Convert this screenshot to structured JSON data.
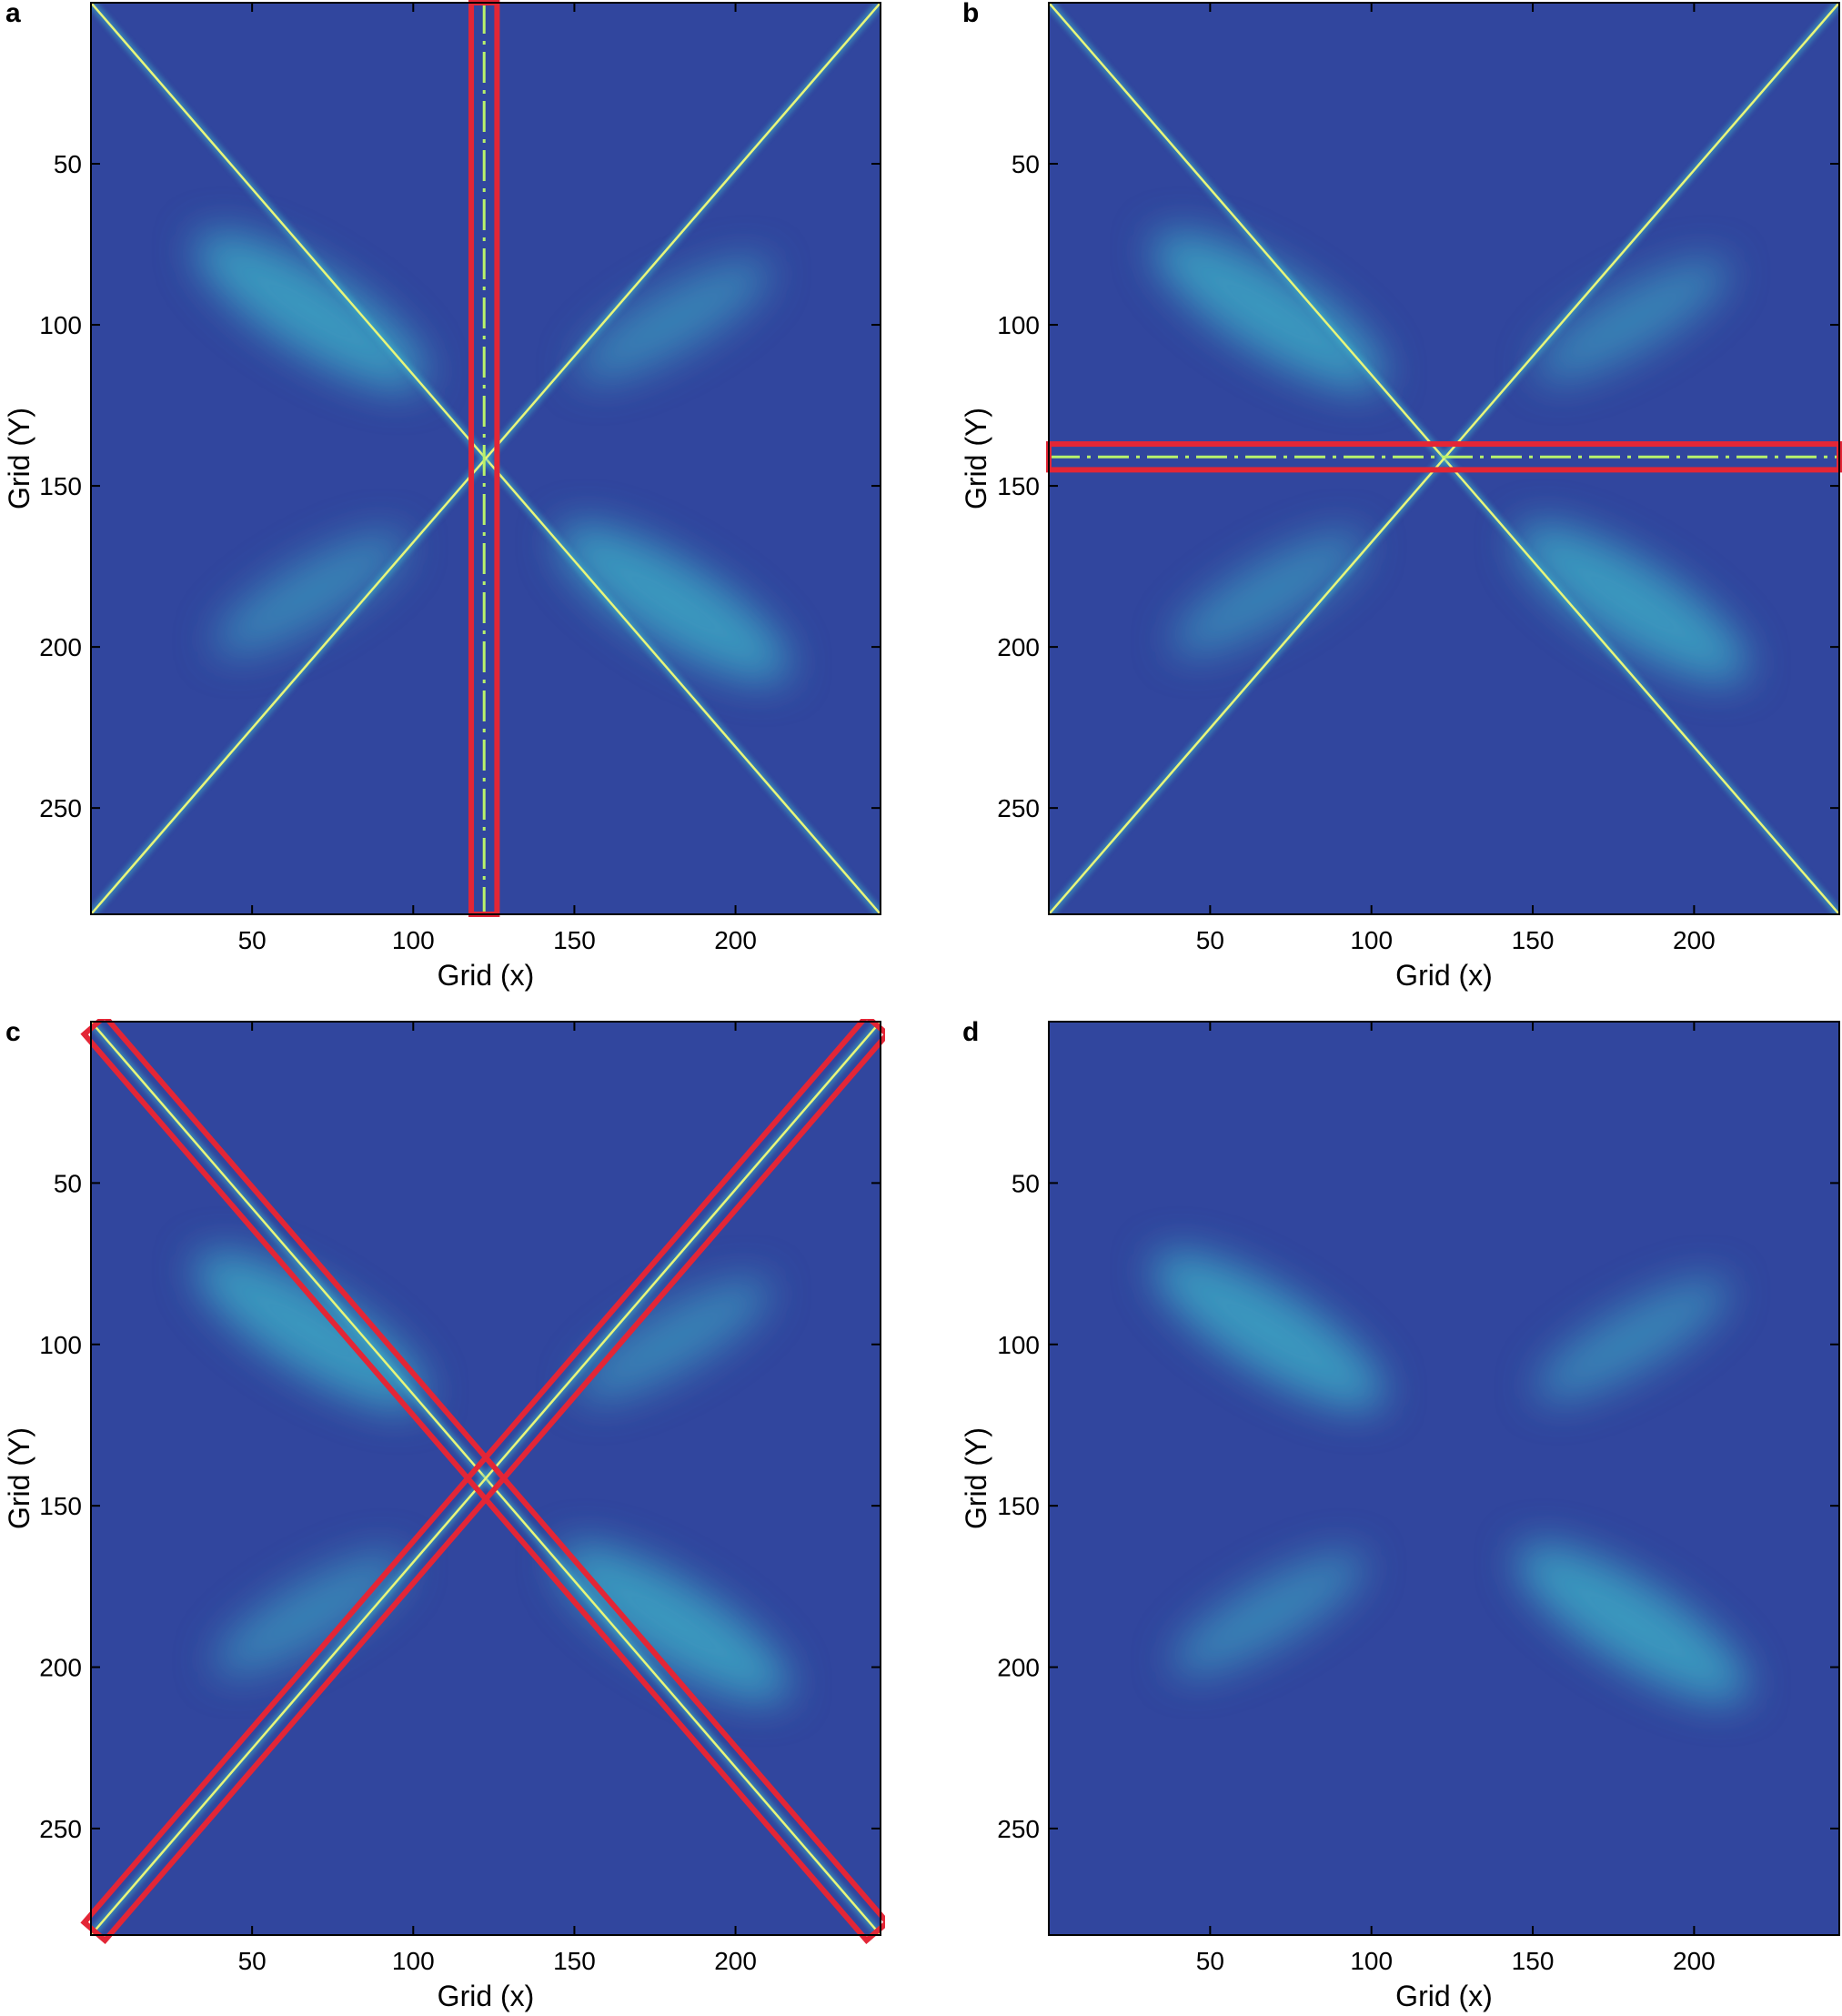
{
  "colors": {
    "background": "#31469e",
    "trace": "#b8f26b",
    "trace_core": "#e8f57a",
    "diffuse": "#3fb3c9",
    "highlight_box": "#e32636",
    "frame": "#000000"
  },
  "chart_data": [
    {
      "panel": "a",
      "type": "heatmap",
      "xlabel": "Grid (x)",
      "ylabel": "Grid (Y)",
      "xlim": [
        0,
        245
      ],
      "ylim": [
        283,
        0
      ],
      "x_ticks": [
        50,
        100,
        150,
        200
      ],
      "y_ticks": [
        50,
        100,
        150,
        200,
        250
      ],
      "center": [
        122,
        141
      ],
      "diagonal_traces": true,
      "diffuse_lobes": true,
      "highlight": {
        "shape": "vertical-band",
        "x": [
          118,
          126
        ],
        "y": [
          0,
          283
        ]
      },
      "dashed_line": {
        "orientation": "vertical",
        "x": 122
      }
    },
    {
      "panel": "b",
      "type": "heatmap",
      "xlabel": "Grid (x)",
      "ylabel": "Grid (Y)",
      "xlim": [
        0,
        245
      ],
      "ylim": [
        283,
        0
      ],
      "x_ticks": [
        50,
        100,
        150,
        200
      ],
      "y_ticks": [
        50,
        100,
        150,
        200,
        250
      ],
      "center": [
        122,
        141
      ],
      "diagonal_traces": true,
      "diffuse_lobes": true,
      "highlight": {
        "shape": "horizontal-band",
        "x": [
          0,
          245
        ],
        "y": [
          137,
          145
        ]
      },
      "dashed_line": {
        "orientation": "horizontal",
        "y": 141
      }
    },
    {
      "panel": "c",
      "type": "heatmap",
      "xlabel": "Grid (x)",
      "ylabel": "Grid (Y)",
      "xlim": [
        0,
        245
      ],
      "ylim": [
        283,
        0
      ],
      "x_ticks": [
        50,
        100,
        150,
        200
      ],
      "y_ticks": [
        50,
        100,
        150,
        200,
        250
      ],
      "center": [
        122,
        141
      ],
      "diagonal_traces": true,
      "diffuse_lobes": true,
      "highlight": {
        "shape": "diagonal-bands"
      }
    },
    {
      "panel": "d",
      "type": "heatmap",
      "xlabel": "Grid (x)",
      "ylabel": "Grid (Y)",
      "xlim": [
        0,
        245
      ],
      "ylim": [
        283,
        0
      ],
      "x_ticks": [
        50,
        100,
        150,
        200
      ],
      "y_ticks": [
        50,
        100,
        150,
        200,
        250
      ],
      "center": [
        122,
        141
      ],
      "diagonal_traces": false,
      "diffuse_lobes": true
    }
  ]
}
